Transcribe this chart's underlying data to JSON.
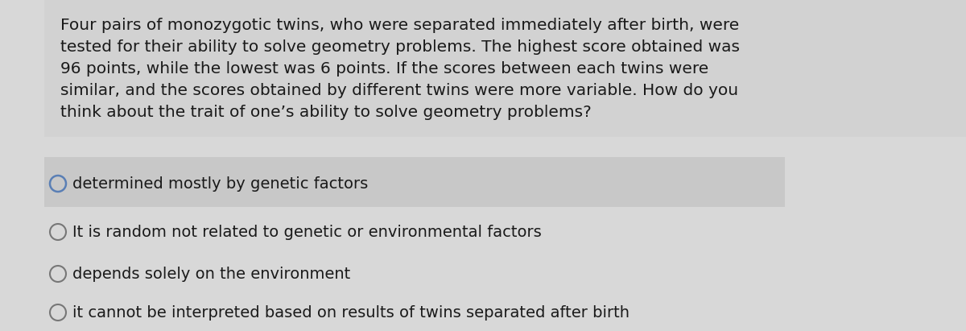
{
  "bg_color": "#c8c8c8",
  "question_text_color": "#1a1a1a",
  "option_text_color": "#1a1a1a",
  "option1_bg": "#c0c0c0",
  "options_area_bg": "#e0e0e0",
  "question_text_line1": "Four pairs of monozygotic twins, who were separated immediately after birth, were",
  "question_text_line2": "tested for their ability to solve geometry problems. The highest score obtained was",
  "question_text_line3": "96 points, while the lowest was 6 points. If the scores between each twins were",
  "question_text_line4": "similar, and the scores obtained by different twins were more variable. How do you",
  "question_text_line5": "think about the trait of one’s ability to solve geometry problems?",
  "options": [
    "determined mostly by genetic factors",
    "It is random not related to genetic or environmental factors",
    "depends solely on the environment",
    "it cannot be interpreted based on results of twins separated after birth"
  ],
  "question_fontsize": 14.5,
  "option_fontsize": 14.0,
  "circle_color": "#777777",
  "circle_selected_color": "#5a7fb5",
  "selected_option": 0
}
